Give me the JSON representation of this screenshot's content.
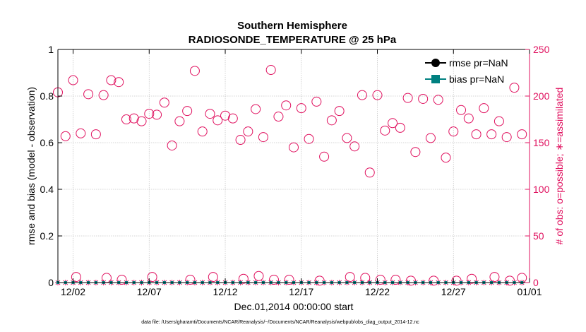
{
  "chart_data": {
    "type": "scatter",
    "title_line1": "Southern Hemisphere",
    "title_line2": "RADIOSONDE_TEMPERATURE @ 25 hPa",
    "xlabel": "Dec.01,2014 00:00:00 start",
    "ylabel_left": "rmse and bias (model - observation)",
    "ylabel_right": "# of obs: o=possible; ∗=assimilated",
    "footnote": "data file: /Users/gharamti/Documents/NCAR/Reanalysis/~/Documents/NCAR/Reanalysis/webpub/obs_diag_output_2014-12.nc",
    "xlim": [
      0,
      31
    ],
    "ylim_left": [
      0,
      1
    ],
    "ylim_right": [
      0,
      250
    ],
    "x_ticks": [
      1,
      6,
      11,
      16,
      21,
      26,
      31
    ],
    "x_tick_labels": [
      "12/02",
      "12/07",
      "12/12",
      "12/17",
      "12/22",
      "12/27",
      "01/01"
    ],
    "y_left_ticks": [
      0,
      0.2,
      0.4,
      0.6,
      0.8,
      1
    ],
    "y_left_tick_labels": [
      "0",
      "0.2",
      "0.4",
      "0.6",
      "0.8",
      "1"
    ],
    "y_right_ticks": [
      0,
      50,
      100,
      150,
      200,
      250
    ],
    "y_right_tick_labels": [
      "0",
      "50",
      "100",
      "150",
      "200",
      "250"
    ],
    "legend": [
      {
        "label": "rmse pr=NaN",
        "color": "#000000",
        "marker": "circle"
      },
      {
        "label": "bias pr=NaN",
        "color": "#008080",
        "marker": "square"
      }
    ],
    "colors": {
      "left_axis": "#000000",
      "right_axis": "#e0115f",
      "obs_marker": "#e0115f",
      "bias": "#008080"
    },
    "series": [
      {
        "name": "possible",
        "x": [
          0,
          0.5,
          1,
          1.5,
          2,
          2.5,
          3,
          3.5,
          4,
          4.5,
          5,
          5.5,
          6,
          6.5,
          7,
          7.5,
          8,
          8.5,
          9,
          9.5,
          10,
          10.5,
          11,
          11.5,
          12,
          12.5,
          13,
          13.5,
          14,
          14.5,
          15,
          15.5,
          16,
          16.5,
          17,
          17.5,
          18,
          18.5,
          19,
          19.5,
          20,
          20.5,
          21,
          21.5,
          22,
          22.5,
          23,
          23.5,
          24,
          24.5,
          25,
          25.5,
          26,
          26.5,
          27,
          27.5,
          28,
          28.5,
          29,
          29.5,
          30,
          30.5
        ],
        "y": [
          204,
          157,
          217,
          160,
          202,
          159,
          201,
          217,
          215,
          175,
          176,
          173,
          181,
          180,
          193,
          147,
          173,
          184,
          227,
          162,
          181,
          174,
          179,
          176,
          153,
          162,
          186,
          156,
          228,
          178,
          190,
          145,
          187,
          154,
          194,
          135,
          174,
          184,
          155,
          146,
          201,
          118,
          201,
          163,
          171,
          166,
          198,
          140,
          197,
          155,
          196,
          134,
          162,
          185,
          176,
          159,
          187,
          159,
          173,
          156,
          209,
          159
        ]
      },
      {
        "name": "possible-near-zero",
        "x": [
          1.2,
          3.2,
          4.2,
          6.2,
          8.7,
          10.2,
          12.2,
          13.2,
          14.2,
          15.2,
          17.2,
          19.2,
          20.2,
          21.2,
          22.2,
          23.2,
          24.7,
          26.2,
          27.2,
          28.7,
          29.7,
          30.5
        ],
        "y": [
          6,
          5,
          3,
          6,
          3,
          6,
          4,
          7,
          3,
          3,
          2,
          6,
          5,
          3,
          3,
          2,
          2,
          2,
          4,
          6,
          2,
          5
        ]
      },
      {
        "name": "assimilated",
        "x": [
          0,
          0.5,
          1,
          1.5,
          2,
          2.5,
          3,
          3.5,
          4,
          4.5,
          5,
          5.5,
          6,
          6.5,
          7,
          7.5,
          8,
          8.5,
          9,
          9.5,
          10,
          10.5,
          11,
          11.5,
          12,
          12.5,
          13,
          13.5,
          14,
          14.5,
          15,
          15.5,
          16,
          16.5,
          17,
          17.5,
          18,
          18.5,
          19,
          19.5,
          20,
          20.5,
          21,
          21.5,
          22,
          22.5,
          23,
          23.5,
          24,
          24.5,
          25,
          25.5,
          26,
          26.5,
          27,
          27.5,
          28,
          28.5,
          29,
          29.5,
          30,
          30.5
        ],
        "y": [
          0,
          0,
          0,
          0,
          0,
          0,
          0,
          0,
          0,
          0,
          0,
          0,
          0,
          0,
          0,
          0,
          0,
          0,
          0,
          0,
          0,
          0,
          0,
          0,
          0,
          0,
          0,
          0,
          0,
          0,
          0,
          0,
          0,
          0,
          0,
          0,
          0,
          0,
          0,
          0,
          0,
          0,
          0,
          0,
          0,
          0,
          0,
          0,
          0,
          0,
          0,
          0,
          0,
          0,
          0,
          0,
          0,
          0,
          0,
          0,
          0,
          0
        ]
      },
      {
        "name": "bias",
        "x": [
          0,
          0.5,
          1,
          1.5,
          2,
          2.5,
          3,
          3.5,
          4,
          4.5,
          5,
          5.5,
          6,
          6.5,
          7,
          7.5,
          8,
          8.5,
          9,
          9.5,
          10,
          10.5,
          11,
          11.5,
          12,
          12.5,
          13,
          13.5,
          14,
          14.5,
          15,
          15.5,
          16,
          16.5,
          17,
          17.5,
          18,
          18.5,
          19,
          19.5,
          20,
          20.5,
          21,
          21.5,
          22,
          22.5,
          23,
          23.5,
          24,
          24.5,
          25,
          25.5,
          26,
          26.5,
          27,
          27.5,
          28,
          28.5,
          29,
          29.5,
          30,
          30.5
        ],
        "y": [
          0,
          0,
          0,
          0,
          0,
          0,
          0,
          0,
          0,
          0,
          0,
          0,
          0,
          0,
          0,
          0,
          0,
          0,
          0,
          0,
          0,
          0,
          0,
          0,
          0,
          0,
          0,
          0,
          0,
          0,
          0,
          0,
          0,
          0,
          0,
          0,
          0,
          0,
          0,
          0,
          0,
          0,
          0,
          0,
          0,
          0,
          0,
          0,
          0,
          0,
          0,
          0,
          0,
          0,
          0,
          0,
          0,
          0,
          0,
          0,
          0,
          0
        ]
      }
    ]
  }
}
